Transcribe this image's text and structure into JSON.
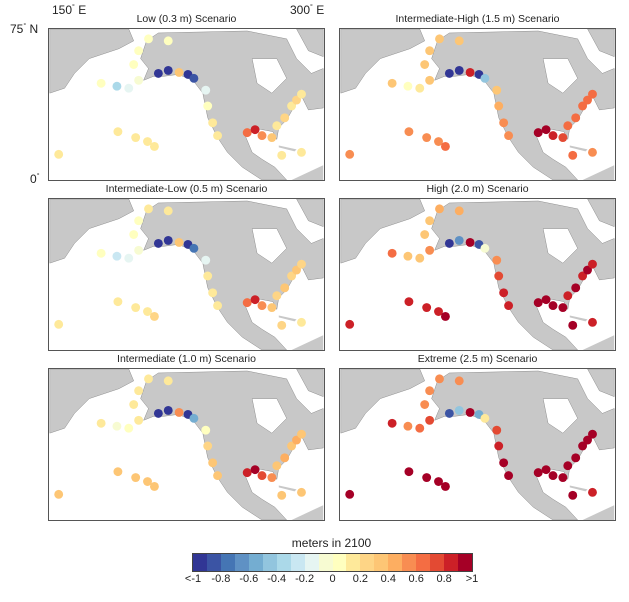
{
  "axis_labels": {
    "lon_left": "150",
    "lon_right": "300",
    "lon_unit": "E",
    "lat_top": "75",
    "lat_unit": "N",
    "lat_bottom": "0",
    "degree": "°"
  },
  "colorbar": {
    "title": "meters in 2100",
    "range": [
      -1,
      1
    ],
    "ticks": [
      "<-1",
      "-0.8",
      "-0.6",
      "-0.4",
      "-0.2",
      "0",
      "0.2",
      "0.4",
      "0.6",
      "0.8",
      ">1"
    ],
    "colors": [
      "#313695",
      "#3b54a4",
      "#4575b4",
      "#5f91c4",
      "#74add1",
      "#92c5de",
      "#abd9e9",
      "#c9e7f2",
      "#e6f5f2",
      "#f7fbd2",
      "#ffffbf",
      "#fee99a",
      "#fed586",
      "#fdc675",
      "#fdae61",
      "#f88d52",
      "#f46d43",
      "#e34a33",
      "#cc2027",
      "#a50026"
    ]
  },
  "panels": [
    {
      "title": "Low  (0.3 m) Scenario",
      "values": [
        0.1,
        0.1,
        0.15,
        0.2,
        0.1,
        0,
        -0.3,
        -0.2,
        -0.1,
        0,
        0,
        0.05,
        0.05,
        -1,
        -1,
        0.3,
        -1,
        -0.8,
        -0.2,
        0.05,
        0.1,
        0.1,
        0.6,
        0.8,
        0.5,
        0.3,
        0.2,
        0.2,
        0.25,
        0.2,
        0.25,
        0.2,
        0.1
      ]
    },
    {
      "title": "Intermediate-High (1.5 m) Scenario",
      "values": [
        0.5,
        0.5,
        0.55,
        0.6,
        0.5,
        0.4,
        0.05,
        0.15,
        0.3,
        0.3,
        0.3,
        0.35,
        0.35,
        -1,
        -0.9,
        0.8,
        -1,
        -0.4,
        0.3,
        0.45,
        0.5,
        0.5,
        1,
        1,
        0.9,
        0.7,
        0.6,
        0.6,
        0.65,
        0.6,
        0.65,
        0.6,
        0.5
      ]
    },
    {
      "title": "Intermediate-Low (0.5 m) Scenario",
      "values": [
        0.15,
        0.15,
        0.2,
        0.25,
        0.15,
        0.05,
        -0.25,
        -0.15,
        -0.05,
        0.05,
        0.05,
        0.1,
        0.1,
        -1,
        -1,
        0.35,
        -1,
        -0.75,
        -0.15,
        0.1,
        0.15,
        0.15,
        0.65,
        0.85,
        0.55,
        0.35,
        0.25,
        0.25,
        0.3,
        0.25,
        0.3,
        0.25,
        0.15
      ]
    },
    {
      "title": "High (2.0 m) Scenario",
      "values": [
        0.85,
        0.85,
        0.9,
        0.95,
        0.85,
        0.6,
        0.3,
        0.4,
        0.5,
        0.4,
        0.4,
        0.45,
        0.45,
        -0.9,
        -0.7,
        1,
        -0.8,
        -0.1,
        0.5,
        0.75,
        0.8,
        0.8,
        1,
        1,
        1,
        1,
        0.95,
        0.9,
        0.95,
        0.9,
        0.95,
        0.9,
        0.8
      ]
    },
    {
      "title": "Intermediate (1.0 m) Scenario",
      "values": [
        0.3,
        0.3,
        0.35,
        0.4,
        0.3,
        0.2,
        -0.1,
        0,
        0.1,
        0.15,
        0.15,
        0.2,
        0.2,
        -1,
        -1,
        0.5,
        -1,
        -0.6,
        0,
        0.25,
        0.3,
        0.3,
        0.85,
        0.95,
        0.7,
        0.5,
        0.4,
        0.4,
        0.45,
        0.4,
        0.45,
        0.4,
        0.3
      ]
    },
    {
      "title": "Extreme (2.5 m) Scenario",
      "values": [
        1,
        1,
        1,
        1,
        1,
        0.8,
        0.5,
        0.6,
        0.7,
        0.5,
        0.5,
        0.55,
        0.55,
        -0.8,
        -0.5,
        1,
        -0.6,
        0.1,
        0.7,
        0.9,
        1,
        1,
        1,
        1,
        1,
        1,
        1,
        1,
        1,
        1,
        1,
        1,
        0.9
      ]
    }
  ]
}
